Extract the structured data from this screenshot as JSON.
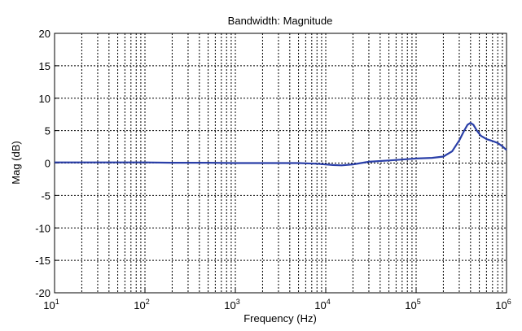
{
  "chart_data": {
    "type": "line",
    "title": "Bandwidth: Magnitude",
    "xlabel": "Frequency (Hz)",
    "ylabel": "Mag (dB)",
    "xscale": "log",
    "xlim": [
      10,
      1000000
    ],
    "ylim": [
      -20,
      20
    ],
    "grid": true,
    "line_color": "#2a3fa8",
    "xticks": [
      {
        "base": "10",
        "exp": "1"
      },
      {
        "base": "10",
        "exp": "2"
      },
      {
        "base": "10",
        "exp": "3"
      },
      {
        "base": "10",
        "exp": "4"
      },
      {
        "base": "10",
        "exp": "5"
      },
      {
        "base": "10",
        "exp": "6"
      }
    ],
    "yticks": [
      "-20",
      "-15",
      "-10",
      "-5",
      "0",
      "5",
      "10",
      "15",
      "20"
    ],
    "series": [
      {
        "x": [
          10,
          20,
          50,
          100,
          200,
          500,
          1000,
          2000,
          5000,
          8000,
          12000,
          15000,
          20000,
          30000,
          50000,
          80000,
          100000,
          150000,
          200000,
          250000,
          300000,
          340000,
          370000,
          400000,
          430000,
          470000,
          520000,
          600000,
          700000,
          800000,
          900000,
          1000000
        ],
        "y": [
          0.1,
          0.1,
          0.1,
          0.1,
          0.05,
          0.05,
          0.0,
          0.0,
          0.0,
          -0.1,
          -0.3,
          -0.35,
          -0.2,
          0.2,
          0.4,
          0.6,
          0.7,
          0.8,
          1.0,
          1.8,
          3.5,
          5.0,
          5.9,
          6.2,
          5.9,
          5.0,
          4.2,
          3.7,
          3.4,
          3.1,
          2.6,
          2.0
        ]
      }
    ]
  }
}
